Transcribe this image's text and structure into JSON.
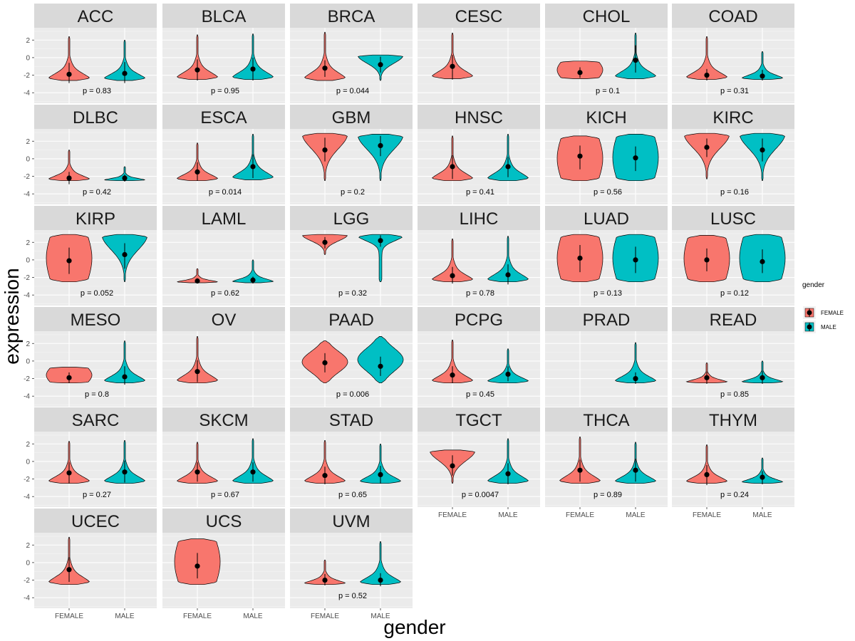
{
  "chart_data": {
    "type": "violin",
    "xlabel": "gender",
    "ylabel": "expression",
    "categories": [
      "FEMALE",
      "MALE"
    ],
    "ylim": [
      -5.2,
      3.4
    ],
    "yticks": [
      2,
      0,
      -2,
      -4
    ],
    "ytick_labels": [
      "2",
      "0",
      "-2",
      "-4"
    ],
    "colors": {
      "FEMALE": "#f8766d",
      "MALE": "#00bfc4"
    },
    "legend": {
      "title": "gender",
      "entries": [
        "FEMALE",
        "MALE"
      ],
      "position": "right"
    },
    "panels": [
      {
        "name": "ACC",
        "p": "p = 0.83",
        "female": {
          "mean": -1.9,
          "lo": -2.9,
          "hi": -0.6,
          "min": -2.6,
          "max": 2.4,
          "shape": "bottom"
        },
        "male": {
          "mean": -1.8,
          "lo": -2.9,
          "hi": -0.5,
          "min": -2.6,
          "max": 2.0,
          "shape": "bottom"
        }
      },
      {
        "name": "BLCA",
        "p": "p = 0.95",
        "female": {
          "mean": -1.4,
          "lo": -2.6,
          "hi": -0.2,
          "min": -2.5,
          "max": 2.6,
          "shape": "bottom"
        },
        "male": {
          "mean": -1.3,
          "lo": -2.6,
          "hi": 0.0,
          "min": -2.5,
          "max": 2.7,
          "shape": "bottom"
        }
      },
      {
        "name": "BRCA",
        "p": "p = 0.044",
        "female": {
          "mean": -1.2,
          "lo": -2.2,
          "hi": -0.3,
          "min": -2.6,
          "max": 2.9,
          "shape": "bottom"
        },
        "male": {
          "mean": -0.8,
          "lo": -1.7,
          "hi": 0.1,
          "min": -2.6,
          "max": 0.3,
          "shape": "top"
        }
      },
      {
        "name": "CESC",
        "p": "",
        "female": {
          "mean": -1.0,
          "lo": -2.5,
          "hi": 0.3,
          "min": -2.4,
          "max": 2.8,
          "shape": "bottom"
        },
        "male": null
      },
      {
        "name": "CHOL",
        "p": "p = 0.1",
        "female": {
          "mean": -1.7,
          "lo": -2.3,
          "hi": -1.1,
          "min": -2.4,
          "max": -0.4,
          "shape": "uniform"
        },
        "male": {
          "mean": -0.3,
          "lo": -1.7,
          "hi": 1.4,
          "min": -2.4,
          "max": 2.8,
          "shape": "bottom"
        }
      },
      {
        "name": "COAD",
        "p": "p = 0.31",
        "female": {
          "mean": -2.0,
          "lo": -2.6,
          "hi": -1.3,
          "min": -2.5,
          "max": 2.4,
          "shape": "bottom"
        },
        "male": {
          "mean": -2.1,
          "lo": -2.6,
          "hi": -1.4,
          "min": -2.5,
          "max": 0.7,
          "shape": "bottom"
        }
      },
      {
        "name": "DLBC",
        "p": "p = 0.42",
        "female": {
          "mean": -2.2,
          "lo": -2.9,
          "hi": -1.5,
          "min": -2.5,
          "max": 1.0,
          "shape": "bottom"
        },
        "male": {
          "mean": -2.2,
          "lo": -2.6,
          "hi": -1.8,
          "min": -2.5,
          "max": -0.9,
          "shape": "bottom"
        }
      },
      {
        "name": "ESCA",
        "p": "p = 0.014",
        "female": {
          "mean": -1.5,
          "lo": -2.5,
          "hi": -0.4,
          "min": -2.5,
          "max": 1.8,
          "shape": "bottom"
        },
        "male": {
          "mean": -0.9,
          "lo": -2.2,
          "hi": 0.5,
          "min": -2.4,
          "max": 2.8,
          "shape": "bottom"
        }
      },
      {
        "name": "GBM",
        "p": "p = 0.2",
        "female": {
          "mean": 1.0,
          "lo": -0.3,
          "hi": 2.4,
          "min": -2.5,
          "max": 2.9,
          "shape": "top"
        },
        "male": {
          "mean": 1.5,
          "lo": 0.3,
          "hi": 2.6,
          "min": -2.5,
          "max": 2.8,
          "shape": "top"
        }
      },
      {
        "name": "HNSC",
        "p": "p = 0.41",
        "female": {
          "mean": -0.9,
          "lo": -2.3,
          "hi": 0.4,
          "min": -2.5,
          "max": 2.6,
          "shape": "bottom"
        },
        "male": {
          "mean": -0.9,
          "lo": -2.1,
          "hi": 0.2,
          "min": -2.5,
          "max": 2.8,
          "shape": "bottom"
        }
      },
      {
        "name": "KICH",
        "p": "p = 0.56",
        "female": {
          "mean": 0.3,
          "lo": -1.2,
          "hi": 1.5,
          "min": -2.5,
          "max": 2.6,
          "shape": "uniform"
        },
        "male": {
          "mean": 0.1,
          "lo": -1.4,
          "hi": 1.4,
          "min": -2.5,
          "max": 2.8,
          "shape": "uniform"
        }
      },
      {
        "name": "KIRC",
        "p": "p = 0.16",
        "female": {
          "mean": 1.3,
          "lo": 0.2,
          "hi": 2.3,
          "min": -2.3,
          "max": 2.9,
          "shape": "top"
        },
        "male": {
          "mean": 1.0,
          "lo": -0.3,
          "hi": 2.3,
          "min": -2.5,
          "max": 2.9,
          "shape": "top"
        }
      },
      {
        "name": "KIRP",
        "p": "p = 0.052",
        "female": {
          "mean": -0.1,
          "lo": -1.6,
          "hi": 1.4,
          "min": -2.5,
          "max": 2.9,
          "shape": "uniform"
        },
        "male": {
          "mean": 0.6,
          "lo": -1.0,
          "hi": 1.9,
          "min": -2.5,
          "max": 2.9,
          "shape": "top"
        }
      },
      {
        "name": "LAML",
        "p": "p = 0.62",
        "female": {
          "mean": -2.4,
          "lo": -2.7,
          "hi": -2.1,
          "min": -2.6,
          "max": -1.0,
          "shape": "bottom"
        },
        "male": {
          "mean": -2.3,
          "lo": -2.7,
          "hi": -1.9,
          "min": -2.6,
          "max": 0.0,
          "shape": "bottom"
        }
      },
      {
        "name": "LGG",
        "p": "p = 0.32",
        "female": {
          "mean": 2.0,
          "lo": 1.3,
          "hi": 2.6,
          "min": 0.6,
          "max": 2.9,
          "shape": "top"
        },
        "male": {
          "mean": 2.2,
          "lo": 1.5,
          "hi": 2.8,
          "min": -2.5,
          "max": 2.9,
          "shape": "topnarrow"
        }
      },
      {
        "name": "LIHC",
        "p": "p = 0.78",
        "female": {
          "mean": -1.8,
          "lo": -2.7,
          "hi": -0.8,
          "min": -2.5,
          "max": 2.4,
          "shape": "bottom"
        },
        "male": {
          "mean": -1.7,
          "lo": -2.8,
          "hi": -0.5,
          "min": -2.5,
          "max": 2.7,
          "shape": "bottom"
        }
      },
      {
        "name": "LUAD",
        "p": "p = 0.13",
        "female": {
          "mean": 0.2,
          "lo": -1.4,
          "hi": 1.7,
          "min": -2.5,
          "max": 2.9,
          "shape": "uniform"
        },
        "male": {
          "mean": 0.0,
          "lo": -1.5,
          "hi": 1.5,
          "min": -2.5,
          "max": 2.9,
          "shape": "uniform"
        }
      },
      {
        "name": "LUSC",
        "p": "p = 0.12",
        "female": {
          "mean": 0.0,
          "lo": -1.3,
          "hi": 1.3,
          "min": -2.5,
          "max": 2.8,
          "shape": "uniform"
        },
        "male": {
          "mean": -0.2,
          "lo": -1.5,
          "hi": 1.2,
          "min": -2.5,
          "max": 2.9,
          "shape": "uniform"
        }
      },
      {
        "name": "MESO",
        "p": "p = 0.8",
        "female": {
          "mean": -1.9,
          "lo": -2.5,
          "hi": -1.3,
          "min": -2.5,
          "max": -0.7,
          "shape": "uniform"
        },
        "male": {
          "mean": -1.8,
          "lo": -2.7,
          "hi": -0.6,
          "min": -2.5,
          "max": 2.3,
          "shape": "bottom"
        }
      },
      {
        "name": "OV",
        "p": "",
        "female": {
          "mean": -1.2,
          "lo": -2.4,
          "hi": 0.1,
          "min": -2.5,
          "max": 2.8,
          "shape": "bottom"
        },
        "male": null
      },
      {
        "name": "PAAD",
        "p": "p = 0.006",
        "female": {
          "mean": -0.2,
          "lo": -1.3,
          "hi": 0.9,
          "min": -2.5,
          "max": 2.3,
          "shape": "mid"
        },
        "male": {
          "mean": -0.6,
          "lo": -1.7,
          "hi": 0.5,
          "min": -2.5,
          "max": 2.8,
          "shape": "mid"
        }
      },
      {
        "name": "PCPG",
        "p": "p = 0.45",
        "female": {
          "mean": -1.6,
          "lo": -2.5,
          "hi": -0.6,
          "min": -2.5,
          "max": 2.4,
          "shape": "bottom"
        },
        "male": {
          "mean": -1.5,
          "lo": -2.3,
          "hi": -0.6,
          "min": -2.5,
          "max": 1.4,
          "shape": "bottom"
        }
      },
      {
        "name": "PRAD",
        "p": "",
        "female": null,
        "male": {
          "mean": -2.0,
          "lo": -2.6,
          "hi": -1.3,
          "min": -2.5,
          "max": 2.1,
          "shape": "bottom"
        }
      },
      {
        "name": "READ",
        "p": "p = 0.85",
        "female": {
          "mean": -1.9,
          "lo": -2.6,
          "hi": -1.2,
          "min": -2.5,
          "max": -0.2,
          "shape": "bottom"
        },
        "male": {
          "mean": -1.9,
          "lo": -2.6,
          "hi": -1.1,
          "min": -2.5,
          "max": 0.0,
          "shape": "bottom"
        }
      },
      {
        "name": "SARC",
        "p": "p = 0.27",
        "female": {
          "mean": -1.3,
          "lo": -2.5,
          "hi": -0.1,
          "min": -2.5,
          "max": 2.3,
          "shape": "bottom"
        },
        "male": {
          "mean": -1.2,
          "lo": -2.4,
          "hi": 0.1,
          "min": -2.5,
          "max": 2.4,
          "shape": "bottom"
        }
      },
      {
        "name": "SKCM",
        "p": "p = 0.67",
        "female": {
          "mean": -1.2,
          "lo": -2.3,
          "hi": -0.1,
          "min": -2.5,
          "max": 2.2,
          "shape": "bottom"
        },
        "male": {
          "mean": -1.2,
          "lo": -2.3,
          "hi": -0.1,
          "min": -2.5,
          "max": 2.6,
          "shape": "bottom"
        }
      },
      {
        "name": "STAD",
        "p": "p = 0.65",
        "female": {
          "mean": -1.6,
          "lo": -2.6,
          "hi": -0.6,
          "min": -2.5,
          "max": 2.4,
          "shape": "bottom"
        },
        "male": {
          "mean": -1.5,
          "lo": -2.5,
          "hi": -0.5,
          "min": -2.5,
          "max": 2.0,
          "shape": "bottom"
        }
      },
      {
        "name": "TGCT",
        "p": "p = 0.0047",
        "female": {
          "mean": -0.5,
          "lo": -1.6,
          "hi": 0.7,
          "min": -2.5,
          "max": 1.3,
          "shape": "top"
        },
        "male": {
          "mean": -1.4,
          "lo": -2.6,
          "hi": -0.2,
          "min": -2.5,
          "max": 2.6,
          "shape": "bottom"
        }
      },
      {
        "name": "THCA",
        "p": "p = 0.89",
        "female": {
          "mean": -1.0,
          "lo": -2.3,
          "hi": 0.2,
          "min": -2.5,
          "max": 2.8,
          "shape": "bottom"
        },
        "male": {
          "mean": -1.0,
          "lo": -2.3,
          "hi": 0.3,
          "min": -2.5,
          "max": 2.2,
          "shape": "bottom"
        }
      },
      {
        "name": "THYM",
        "p": "p = 0.24",
        "female": {
          "mean": -1.5,
          "lo": -2.7,
          "hi": -0.4,
          "min": -2.5,
          "max": 1.9,
          "shape": "bottom"
        },
        "male": {
          "mean": -1.8,
          "lo": -2.6,
          "hi": -1.1,
          "min": -2.5,
          "max": 0.4,
          "shape": "bottom"
        }
      },
      {
        "name": "UCEC",
        "p": "",
        "female": {
          "mean": -0.8,
          "lo": -2.2,
          "hi": 0.6,
          "min": -2.5,
          "max": 2.9,
          "shape": "bottom"
        },
        "male": null
      },
      {
        "name": "UCS",
        "p": "",
        "female": {
          "mean": -0.4,
          "lo": -1.8,
          "hi": 1.1,
          "min": -2.5,
          "max": 2.7,
          "shape": "uniform"
        },
        "male": null
      },
      {
        "name": "UVM",
        "p": "p = 0.52",
        "female": {
          "mean": -2.0,
          "lo": -2.6,
          "hi": -1.3,
          "min": -2.5,
          "max": 0.3,
          "shape": "bottom"
        },
        "male": {
          "mean": -2.0,
          "lo": -2.7,
          "hi": -1.2,
          "min": -2.5,
          "max": 2.4,
          "shape": "bottom"
        }
      }
    ]
  }
}
